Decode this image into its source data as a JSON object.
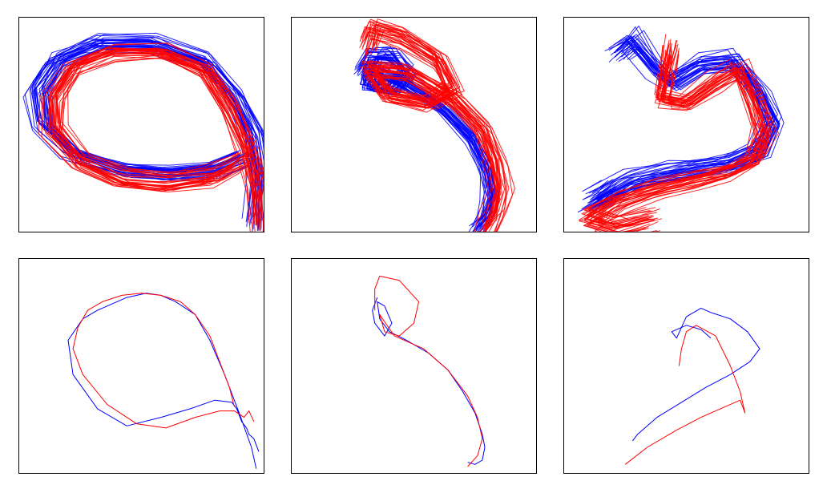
{
  "colors": {
    "series_a": "#0000ff",
    "series_b": "#ff0000",
    "frame": "#000000"
  },
  "chart_data": [
    {
      "type": "line",
      "title": "",
      "xlabel": "",
      "ylabel": "",
      "xlim": [
        0,
        1
      ],
      "ylim": [
        0,
        1
      ],
      "grid": false,
      "ticks": false,
      "series": [
        {
          "color": "#0000ff",
          "bundle": true,
          "x": [
            0.92,
            0.8,
            0.62,
            0.42,
            0.22,
            0.1,
            0.08,
            0.16,
            0.32,
            0.55,
            0.76,
            0.88,
            0.96,
            0.99,
            0.98
          ],
          "y": [
            0.35,
            0.29,
            0.27,
            0.29,
            0.36,
            0.5,
            0.66,
            0.8,
            0.88,
            0.88,
            0.8,
            0.64,
            0.46,
            0.24,
            0.02
          ]
        },
        {
          "color": "#ff0000",
          "bundle": true,
          "x": [
            0.9,
            0.78,
            0.6,
            0.42,
            0.25,
            0.14,
            0.14,
            0.22,
            0.38,
            0.58,
            0.76,
            0.86,
            0.93,
            0.97,
            0.98
          ],
          "y": [
            0.33,
            0.26,
            0.23,
            0.25,
            0.33,
            0.48,
            0.64,
            0.78,
            0.85,
            0.85,
            0.76,
            0.58,
            0.4,
            0.22,
            0.04
          ]
        }
      ]
    },
    {
      "type": "line",
      "title": "",
      "xlabel": "",
      "ylabel": "",
      "xlim": [
        0,
        1
      ],
      "ylim": [
        0,
        1
      ],
      "grid": false,
      "ticks": false,
      "series": [
        {
          "color": "#0000ff",
          "bundle": true,
          "x": [
            0.3,
            0.34,
            0.42,
            0.48,
            0.42,
            0.32,
            0.33,
            0.46,
            0.62,
            0.74,
            0.8,
            0.82,
            0.8,
            0.76
          ],
          "y": [
            0.74,
            0.82,
            0.82,
            0.74,
            0.66,
            0.68,
            0.76,
            0.7,
            0.58,
            0.44,
            0.3,
            0.18,
            0.08,
            0.02
          ]
        },
        {
          "color": "#ff0000",
          "bundle": true,
          "x": [
            0.32,
            0.34,
            0.46,
            0.6,
            0.66,
            0.56,
            0.4,
            0.32,
            0.48,
            0.66,
            0.78,
            0.83,
            0.85,
            0.83,
            0.79
          ],
          "y": [
            0.86,
            0.94,
            0.9,
            0.8,
            0.66,
            0.6,
            0.64,
            0.76,
            0.74,
            0.62,
            0.48,
            0.34,
            0.2,
            0.1,
            0.02
          ]
        }
      ]
    },
    {
      "type": "line",
      "title": "",
      "xlabel": "",
      "ylabel": "",
      "xlim": [
        0,
        1
      ],
      "ylim": [
        0,
        1
      ],
      "grid": false,
      "ticks": false,
      "series": [
        {
          "color": "#0000ff",
          "bundle": true,
          "x": [
            0.22,
            0.28,
            0.38,
            0.44,
            0.56,
            0.7,
            0.8,
            0.86,
            0.8,
            0.68,
            0.56,
            0.44,
            0.28,
            0.12,
            0.2
          ],
          "y": [
            0.84,
            0.9,
            0.76,
            0.7,
            0.78,
            0.8,
            0.66,
            0.52,
            0.38,
            0.32,
            0.3,
            0.28,
            0.24,
            0.14,
            0.2
          ]
        },
        {
          "color": "#ff0000",
          "bundle": true,
          "x": [
            0.44,
            0.42,
            0.4,
            0.5,
            0.62,
            0.72,
            0.78,
            0.82,
            0.78,
            0.68,
            0.54,
            0.38,
            0.22,
            0.1,
            0.22,
            0.36
          ],
          "y": [
            0.86,
            0.74,
            0.62,
            0.6,
            0.7,
            0.76,
            0.6,
            0.46,
            0.34,
            0.28,
            0.24,
            0.2,
            0.14,
            0.06,
            0.02,
            0.06
          ]
        }
      ]
    },
    {
      "type": "line",
      "title": "",
      "xlabel": "",
      "ylabel": "",
      "xlim": [
        0,
        1
      ],
      "ylim": [
        0,
        1
      ],
      "grid": false,
      "ticks": false,
      "series": [
        {
          "color": "#0000ff",
          "bundle": false,
          "x": [
            0.97,
            0.95,
            0.9,
            0.84,
            0.78,
            0.72,
            0.64,
            0.58,
            0.52,
            0.44,
            0.38,
            0.32,
            0.26,
            0.2,
            0.22,
            0.32,
            0.44,
            0.58,
            0.7,
            0.8,
            0.87,
            0.89,
            0.91,
            0.93,
            0.94,
            0.96,
            0.98
          ],
          "y": [
            0.02,
            0.12,
            0.28,
            0.46,
            0.62,
            0.74,
            0.8,
            0.83,
            0.84,
            0.82,
            0.79,
            0.76,
            0.72,
            0.62,
            0.46,
            0.3,
            0.22,
            0.26,
            0.3,
            0.34,
            0.33,
            0.3,
            0.24,
            0.21,
            0.18,
            0.16,
            0.1
          ]
        },
        {
          "color": "#ff0000",
          "bundle": false,
          "x": [
            0.88,
            0.86,
            0.82,
            0.78,
            0.72,
            0.66,
            0.58,
            0.5,
            0.42,
            0.34,
            0.28,
            0.24,
            0.22,
            0.26,
            0.36,
            0.48,
            0.6,
            0.72,
            0.82,
            0.88,
            0.92,
            0.94,
            0.96
          ],
          "y": [
            0.31,
            0.4,
            0.52,
            0.64,
            0.74,
            0.8,
            0.83,
            0.84,
            0.83,
            0.8,
            0.76,
            0.68,
            0.58,
            0.46,
            0.32,
            0.23,
            0.21,
            0.26,
            0.29,
            0.29,
            0.26,
            0.29,
            0.24
          ]
        }
      ]
    },
    {
      "type": "line",
      "title": "",
      "xlabel": "",
      "ylabel": "",
      "xlim": [
        0,
        1
      ],
      "ylim": [
        0,
        1
      ],
      "grid": false,
      "ticks": false,
      "series": [
        {
          "color": "#0000ff",
          "bundle": false,
          "x": [
            0.35,
            0.33,
            0.34,
            0.38,
            0.41,
            0.38,
            0.35,
            0.36,
            0.4,
            0.47,
            0.56,
            0.64,
            0.7,
            0.75,
            0.78,
            0.79,
            0.78,
            0.75,
            0.72
          ],
          "y": [
            0.82,
            0.76,
            0.7,
            0.64,
            0.7,
            0.78,
            0.8,
            0.72,
            0.66,
            0.62,
            0.56,
            0.48,
            0.38,
            0.28,
            0.18,
            0.12,
            0.06,
            0.04,
            0.05
          ]
        },
        {
          "color": "#ff0000",
          "bundle": false,
          "x": [
            0.34,
            0.34,
            0.36,
            0.44,
            0.52,
            0.5,
            0.44,
            0.38,
            0.36,
            0.42,
            0.54,
            0.64,
            0.72,
            0.76,
            0.78,
            0.76,
            0.72
          ],
          "y": [
            0.76,
            0.86,
            0.92,
            0.9,
            0.8,
            0.7,
            0.64,
            0.66,
            0.74,
            0.64,
            0.58,
            0.48,
            0.36,
            0.26,
            0.16,
            0.08,
            0.03
          ]
        }
      ]
    },
    {
      "type": "line",
      "title": "",
      "xlabel": "",
      "ylabel": "",
      "xlim": [
        0,
        1
      ],
      "ylim": [
        0,
        1
      ],
      "grid": false,
      "ticks": false,
      "series": [
        {
          "color": "#0000ff",
          "bundle": false,
          "x": [
            0.28,
            0.3,
            0.38,
            0.48,
            0.58,
            0.68,
            0.76,
            0.8,
            0.75,
            0.68,
            0.6,
            0.56,
            0.5,
            0.46,
            0.44,
            0.5,
            0.56,
            0.6
          ],
          "y": [
            0.15,
            0.18,
            0.26,
            0.33,
            0.4,
            0.46,
            0.52,
            0.58,
            0.66,
            0.72,
            0.75,
            0.77,
            0.73,
            0.63,
            0.66,
            0.69,
            0.67,
            0.63
          ]
        },
        {
          "color": "#ff0000",
          "bundle": false,
          "x": [
            0.25,
            0.34,
            0.46,
            0.56,
            0.66,
            0.72,
            0.74,
            0.72,
            0.68,
            0.62,
            0.54,
            0.5,
            0.48,
            0.47
          ],
          "y": [
            0.04,
            0.12,
            0.2,
            0.26,
            0.31,
            0.34,
            0.28,
            0.38,
            0.5,
            0.64,
            0.69,
            0.66,
            0.58,
            0.5
          ]
        }
      ]
    }
  ]
}
